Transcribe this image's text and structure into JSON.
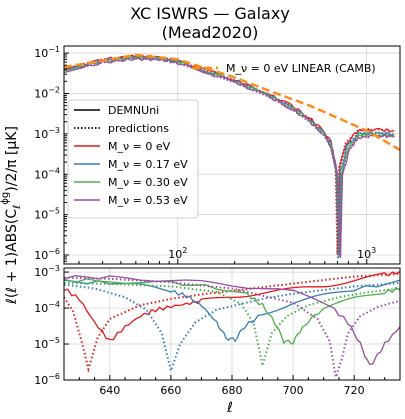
{
  "chart_data": [
    {
      "type": "line",
      "title_line1": "XC ISWRS — Galaxy",
      "title_line2": "(Mead2020)",
      "ylabel": "ℓ(ℓ + 1)ABS(C",
      "ylabel_sub": "ℓ",
      "ylabel_sup": "ϕg",
      "ylabel_tail": ")/2/π [μK]",
      "xscale": "log",
      "yscale": "log",
      "xlim": [
        25,
        1500
      ],
      "ylim": [
        6e-07,
        0.15
      ],
      "grid": true,
      "x_ticks": [
        {
          "value": 100,
          "base": "10",
          "exp": "2"
        },
        {
          "value": 1000,
          "base": "10",
          "exp": "3"
        }
      ],
      "y_ticks": [
        {
          "value": 0.1,
          "base": "10",
          "exp": "−1"
        },
        {
          "value": 0.01,
          "base": "10",
          "exp": "−2"
        },
        {
          "value": 0.001,
          "base": "10",
          "exp": "−3"
        },
        {
          "value": 0.0001,
          "base": "10",
          "exp": "−4"
        },
        {
          "value": 1e-05,
          "base": "10",
          "exp": "−5"
        },
        {
          "value": 1e-06,
          "base": "10",
          "exp": "−6"
        }
      ],
      "legend_top": {
        "label": "M_ν = 0 eV LINEAR (CAMB)",
        "color": "#ff8c1a",
        "placement": "top-right"
      },
      "legend": [
        {
          "label": "DEMNUni",
          "style": "solid",
          "color": "#000000"
        },
        {
          "label": "predictions",
          "style": "dotted",
          "color": "#000000"
        },
        {
          "label": "M_ν = 0 eV",
          "color": "#e41a1c"
        },
        {
          "label": "M_ν = 0.17 eV",
          "color": "#377eb8"
        },
        {
          "label": "M_ν = 0.30 eV",
          "color": "#4daf4a"
        },
        {
          "label": "M_ν = 0.53 eV",
          "color": "#984ea3"
        }
      ],
      "legend_placement": "center-left",
      "linear_curve": {
        "x": [
          25,
          60,
          100,
          200,
          300,
          500,
          700,
          1000,
          1500
        ],
        "y": [
          0.045,
          0.09,
          0.07,
          0.025,
          0.012,
          0.005,
          0.0025,
          0.0012,
          0.0004
        ]
      },
      "series": [
        {
          "color": "#e41a1c",
          "zero_ell": 706,
          "floor": 1e-06,
          "x": [
            25,
            40,
            60,
            80,
            100,
            150,
            200,
            300,
            400,
            500,
            600,
            650,
            690,
            706,
            720,
            780,
            900,
            1100,
            1400
          ],
          "y": [
            0.04,
            0.07,
            0.085,
            0.08,
            0.065,
            0.035,
            0.022,
            0.01,
            0.005,
            0.0025,
            0.0011,
            0.0006,
            0.00015,
            1e-06,
            0.00015,
            0.0006,
            0.0012,
            0.0013,
            0.0012
          ]
        },
        {
          "color": "#377eb8",
          "zero_ell": 713,
          "floor": 8e-07,
          "x": [
            25,
            40,
            60,
            80,
            100,
            150,
            200,
            300,
            400,
            500,
            600,
            650,
            695,
            713,
            728,
            790,
            900,
            1100,
            1400
          ],
          "y": [
            0.038,
            0.066,
            0.08,
            0.076,
            0.062,
            0.033,
            0.021,
            0.0095,
            0.0047,
            0.0023,
            0.001,
            0.00055,
            0.00012,
            8e-07,
            0.00012,
            0.0005,
            0.001,
            0.0011,
            0.001
          ]
        },
        {
          "color": "#4daf4a",
          "zero_ell": 720,
          "floor": 1.2e-06,
          "x": [
            25,
            40,
            60,
            80,
            100,
            150,
            200,
            300,
            400,
            500,
            600,
            650,
            700,
            720,
            736,
            800,
            900,
            1100,
            1400
          ],
          "y": [
            0.036,
            0.063,
            0.077,
            0.073,
            0.06,
            0.032,
            0.02,
            0.009,
            0.0045,
            0.0022,
            0.00095,
            0.0005,
            0.0001,
            1.2e-06,
            0.0001,
            0.00045,
            0.0009,
            0.001,
            0.0009
          ]
        },
        {
          "color": "#984ea3",
          "zero_ell": 727,
          "floor": 9e-07,
          "x": [
            25,
            40,
            60,
            80,
            100,
            150,
            200,
            300,
            400,
            500,
            600,
            650,
            705,
            727,
            744,
            810,
            900,
            1100,
            1400
          ],
          "y": [
            0.033,
            0.058,
            0.072,
            0.069,
            0.057,
            0.03,
            0.019,
            0.0085,
            0.0042,
            0.002,
            0.0009,
            0.00047,
            9e-05,
            9e-07,
            9e-05,
            0.0004,
            0.0008,
            0.0009,
            0.00085
          ]
        }
      ]
    },
    {
      "type": "line",
      "xlabel": "ℓ",
      "xscale": "linear",
      "yscale": "log",
      "xlim": [
        625,
        735
      ],
      "ylim": [
        1e-06,
        0.0013
      ],
      "grid": true,
      "x_ticks": [
        640,
        660,
        680,
        700,
        720
      ],
      "y_ticks": [
        {
          "value": 0.001,
          "base": "10",
          "exp": "−3"
        },
        {
          "value": 0.0001,
          "base": "10",
          "exp": "−4"
        },
        {
          "value": 1e-05,
          "base": "10",
          "exp": "−5"
        },
        {
          "value": 1e-06,
          "base": "10",
          "exp": "−6"
        }
      ],
      "series": [
        {
          "color": "#e41a1c",
          "style": "solid",
          "x": [
            625,
            630,
            635,
            640,
            645,
            650,
            655,
            660,
            665,
            670,
            680,
            690,
            700,
            710,
            720,
            730,
            735
          ],
          "y": [
            0.00035,
            0.00018,
            4e-05,
            1.2e-05,
            3e-05,
            6e-05,
            9e-05,
            0.00011,
            0.00013,
            0.00016,
            0.00021,
            0.00027,
            0.00033,
            0.00042,
            0.0006,
            0.00085,
            0.001
          ]
        },
        {
          "color": "#e41a1c",
          "style": "dotted",
          "x": [
            625,
            628,
            631,
            633,
            636,
            640,
            650,
            660,
            670,
            680,
            690,
            700,
            710,
            720,
            735
          ],
          "y": [
            0.0002,
            8e-05,
            1e-05,
            2e-06,
            1.5e-05,
            5e-05,
            0.00012,
            0.00018,
            0.00024,
            0.0003,
            0.00038,
            0.00048,
            0.0006,
            0.00075,
            0.0009
          ]
        },
        {
          "color": "#377eb8",
          "style": "solid",
          "x": [
            625,
            640,
            650,
            660,
            665,
            670,
            675,
            678,
            681,
            684,
            690,
            700,
            710,
            720,
            735
          ],
          "y": [
            0.00055,
            0.0005,
            0.00042,
            0.0003,
            0.00022,
            0.00012,
            4e-05,
            1.5e-05,
            1.3e-05,
            3e-05,
            7e-05,
            0.00014,
            0.00022,
            0.00033,
            0.00055
          ]
        },
        {
          "color": "#377eb8",
          "style": "dotted",
          "x": [
            625,
            635,
            645,
            652,
            657,
            660,
            663,
            668,
            675,
            690,
            700,
            710,
            720,
            735
          ],
          "y": [
            0.00045,
            0.00035,
            0.0002,
            9e-05,
            2e-05,
            1.8e-06,
            1e-05,
            4e-05,
            9e-05,
            0.00018,
            0.00025,
            0.00032,
            0.0004,
            0.0005
          ]
        },
        {
          "color": "#4daf4a",
          "style": "solid",
          "x": [
            625,
            640,
            660,
            675,
            685,
            690,
            694,
            697,
            700,
            703,
            710,
            720,
            730,
            735
          ],
          "y": [
            0.0006,
            0.00057,
            0.0005,
            0.00038,
            0.00024,
            0.00012,
            4e-05,
            1.2e-05,
            1.1e-05,
            3e-05,
            0.0001,
            0.00018,
            0.00028,
            0.00035
          ]
        },
        {
          "color": "#4daf4a",
          "style": "dotted",
          "x": [
            625,
            640,
            660,
            675,
            683,
            687,
            690,
            693,
            698,
            705,
            715,
            725,
            735
          ],
          "y": [
            0.0005,
            0.00047,
            0.0004,
            0.00028,
            0.00013,
            4e-05,
            2.5e-06,
            2e-05,
            6e-05,
            0.00012,
            0.0002,
            0.00028,
            0.00035
          ]
        },
        {
          "color": "#984ea3",
          "style": "solid",
          "x": [
            625,
            640,
            660,
            680,
            700,
            712,
            718,
            722,
            725,
            727,
            730,
            735
          ],
          "y": [
            0.00075,
            0.0007,
            0.0006,
            0.00045,
            0.00028,
            0.00012,
            4e-05,
            1e-05,
            2.5e-06,
            4e-06,
            1e-05,
            3e-05
          ]
        },
        {
          "color": "#984ea3",
          "style": "dotted",
          "x": [
            625,
            640,
            660,
            680,
            700,
            708,
            712,
            714,
            716,
            718,
            722,
            728,
            735
          ],
          "y": [
            0.0007,
            0.00065,
            0.00052,
            0.00035,
            0.00014,
            5e-05,
            1.2e-05,
            1.2e-06,
            4e-06,
            2e-05,
            6e-05,
            0.00011,
            0.00016
          ]
        }
      ]
    }
  ]
}
